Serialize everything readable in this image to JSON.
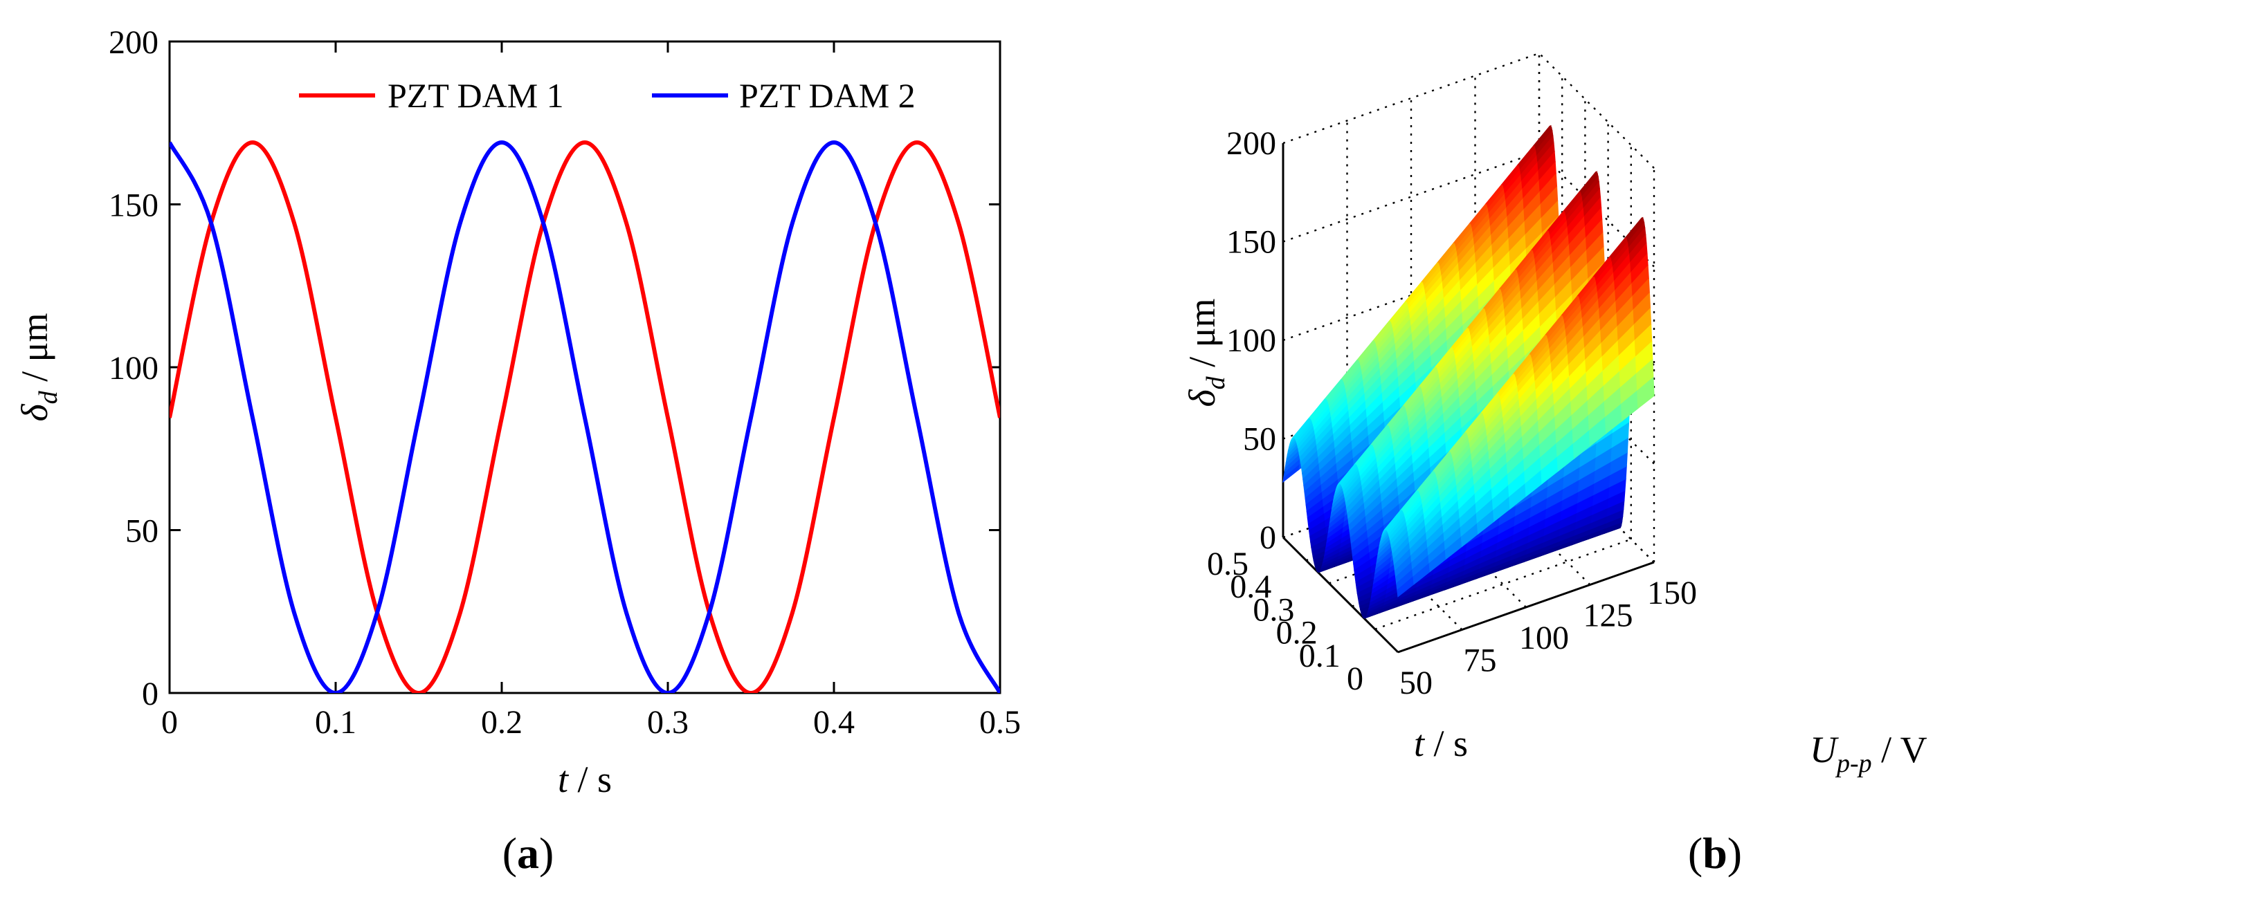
{
  "chart_data": [
    {
      "type": "line",
      "panel": "a",
      "caption": "(a)",
      "xlabel_var": "t",
      "xlabel_unit": " / s",
      "ylabel_var": "δ",
      "ylabel_sub": "d",
      "ylabel_unit": " / μm",
      "xlim": [
        0,
        0.5
      ],
      "ylim": [
        0,
        200
      ],
      "xticks": [
        0,
        0.1,
        0.2,
        0.3,
        0.4,
        0.5
      ],
      "xtick_labels": [
        "0",
        "0.1",
        "0.2",
        "0.3",
        "0.4",
        "0.5"
      ],
      "yticks": [
        0,
        50,
        100,
        150,
        200
      ],
      "ytick_labels": [
        "0",
        "50",
        "100",
        "150",
        "200"
      ],
      "legend_position": "top-right",
      "series": [
        {
          "name": "PZT DAM 1",
          "color": "#ff0000",
          "x": [
            0,
            0.025,
            0.05,
            0.075,
            0.1,
            0.125,
            0.15,
            0.175,
            0.2,
            0.225,
            0.25,
            0.275,
            0.3,
            0.325,
            0.35,
            0.375,
            0.4,
            0.425,
            0.45,
            0.475,
            0.5
          ],
          "y": [
            84.5,
            144.3,
            169,
            144.3,
            84.5,
            24.7,
            0,
            24.7,
            84.5,
            144.3,
            169,
            144.3,
            84.5,
            24.7,
            0,
            24.7,
            84.5,
            144.3,
            169,
            144.3,
            84.5
          ]
        },
        {
          "name": "PZT DAM 2",
          "color": "#0000ff",
          "x": [
            0,
            0.025,
            0.05,
            0.075,
            0.1,
            0.125,
            0.15,
            0.175,
            0.2,
            0.225,
            0.25,
            0.275,
            0.3,
            0.325,
            0.35,
            0.375,
            0.4,
            0.425,
            0.45,
            0.475,
            0.5
          ],
          "y": [
            169,
            144.3,
            84.5,
            24.7,
            0,
            24.7,
            84.5,
            144.3,
            169,
            144.3,
            84.5,
            24.7,
            0,
            24.7,
            84.5,
            144.3,
            169,
            144.3,
            84.5,
            24.7,
            0
          ]
        }
      ]
    },
    {
      "type": "surface",
      "panel": "b",
      "caption": "(b)",
      "xlabel_var": "t",
      "xlabel_unit": " / s",
      "ylabel_var": "U",
      "ylabel_sub": "p-p",
      "ylabel_unit": " / V",
      "zlabel_var": "δ",
      "zlabel_sub": "d",
      "zlabel_unit": " / μm",
      "t_lim": [
        0,
        0.5
      ],
      "u_lim": [
        50,
        150
      ],
      "z_lim": [
        0,
        200
      ],
      "t_tick_labels": [
        "0",
        "0.1",
        "0.2",
        "0.3",
        "0.4",
        "0.5"
      ],
      "u_tick_labels": [
        "50",
        "75",
        "100",
        "125",
        "150"
      ],
      "z_tick_labels": [
        "0",
        "50",
        "100",
        "150",
        "200"
      ],
      "peak_z": [
        {
          "u": 50,
          "z": 56
        },
        {
          "u": 75,
          "z": 84
        },
        {
          "u": 100,
          "z": 112
        },
        {
          "u": 125,
          "z": 141
        },
        {
          "u": 150,
          "z": 169
        }
      ],
      "colormap": "jet"
    }
  ]
}
